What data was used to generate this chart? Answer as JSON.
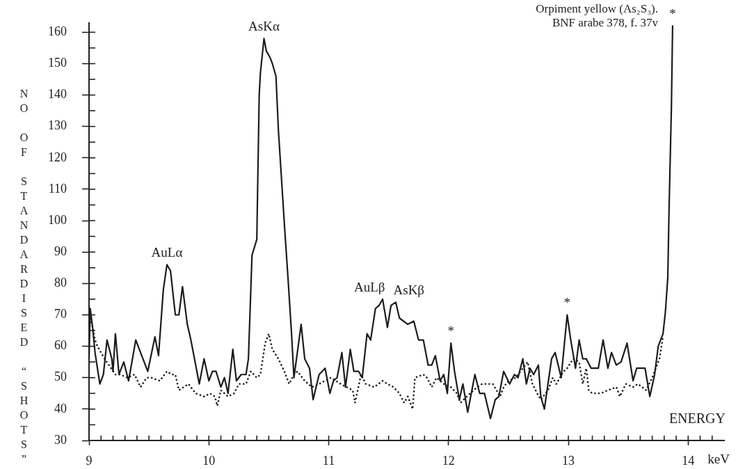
{
  "chart_data": {
    "type": "line",
    "title": "Orpiment yellow (As₂S₃).",
    "subtitle": "BNF arabe 378, f. 37v",
    "xlabel": "ENERGY",
    "ylabel": "NO OF STANDARDISED “SHOTS”",
    "xlim": [
      9,
      14.3
    ],
    "ylim": [
      30,
      163
    ],
    "xticks": [
      9,
      {
        "value": 9.1,
        "label": null
      },
      {
        "value": 9.2,
        "label": null
      },
      {
        "value": 9.3,
        "label": null
      },
      {
        "value": 9.4,
        "label": null
      },
      {
        "value": 9.5,
        "label": null
      },
      {
        "value": 9.6,
        "label": null
      },
      {
        "value": 9.7,
        "label": null
      },
      {
        "value": 9.8,
        "label": null
      },
      {
        "value": 9.9,
        "label": null
      },
      10,
      {
        "value": 10.1,
        "label": null
      },
      {
        "value": 10.2,
        "label": null
      },
      {
        "value": 10.3,
        "label": null
      },
      {
        "value": 10.4,
        "label": null
      },
      {
        "value": 10.5,
        "label": null
      },
      {
        "value": 10.6,
        "label": null
      },
      {
        "value": 10.7,
        "label": null
      },
      {
        "value": 10.8,
        "label": null
      },
      {
        "value": 10.9,
        "label": null
      },
      11,
      {
        "value": 11.1,
        "label": null
      },
      {
        "value": 11.2,
        "label": null
      },
      {
        "value": 11.3,
        "label": null
      },
      {
        "value": 11.4,
        "label": null
      },
      {
        "value": 11.5,
        "label": null
      },
      {
        "value": 11.6,
        "label": null
      },
      {
        "value": 11.7,
        "label": null
      },
      {
        "value": 11.8,
        "label": null
      },
      {
        "value": 11.9,
        "label": null
      },
      12,
      {
        "value": 12.1,
        "label": null
      },
      {
        "value": 12.2,
        "label": null
      },
      {
        "value": 12.3,
        "label": null
      },
      {
        "value": 12.4,
        "label": null
      },
      {
        "value": 12.5,
        "label": null
      },
      {
        "value": 12.6,
        "label": null
      },
      {
        "value": 12.7,
        "label": null
      },
      {
        "value": 12.8,
        "label": null
      },
      {
        "value": 12.9,
        "label": null
      },
      13,
      {
        "value": 13.1,
        "label": null
      },
      {
        "value": 13.2,
        "label": null
      },
      {
        "value": 13.3,
        "label": null
      },
      {
        "value": 13.4,
        "label": null
      },
      {
        "value": 13.5,
        "label": null
      },
      {
        "value": 13.6,
        "label": null
      },
      {
        "value": 13.7,
        "label": null
      },
      {
        "value": 13.8,
        "label": null
      },
      {
        "value": 13.9,
        "label": null
      },
      14,
      {
        "value": 14.1,
        "label": null
      },
      {
        "value": 14.2,
        "label": null
      }
    ],
    "yticks": [
      30,
      {
        "value": 35,
        "label": null
      },
      40,
      {
        "value": 45,
        "label": null
      },
      50,
      {
        "value": 55,
        "label": null
      },
      60,
      {
        "value": 65,
        "label": null
      },
      70,
      {
        "value": 75,
        "label": null
      },
      80,
      {
        "value": 85,
        "label": null
      },
      90,
      {
        "value": 95,
        "label": null
      },
      100,
      {
        "value": 105,
        "label": null
      },
      110,
      {
        "value": 115,
        "label": null
      },
      120,
      {
        "value": 125,
        "label": null
      },
      130,
      {
        "value": 135,
        "label": null
      },
      140,
      {
        "value": 145,
        "label": null
      },
      150,
      {
        "value": 155,
        "label": null
      },
      160
    ],
    "series": [
      {
        "color": "#1c1c1c",
        "line_style": "solid",
        "x": [
          9.0,
          9.01,
          9.03,
          9.05,
          9.09,
          9.12,
          9.15,
          9.19,
          9.2,
          9.22,
          9.25,
          9.29,
          9.33,
          9.39,
          9.49,
          9.55,
          9.58,
          9.62,
          9.65,
          9.68,
          9.72,
          9.75,
          9.78,
          9.82,
          9.85,
          9.92,
          9.96,
          10.0,
          10.03,
          10.06,
          10.1,
          10.13,
          10.16,
          10.2,
          10.23,
          10.27,
          10.31,
          10.33,
          10.36,
          10.4,
          10.42,
          10.43,
          10.46,
          10.48,
          10.51,
          10.53,
          10.56,
          10.58,
          10.61,
          10.63,
          10.66,
          10.69,
          10.71,
          10.77,
          10.8,
          10.84,
          10.87,
          10.92,
          10.97,
          11.01,
          11.04,
          11.07,
          11.11,
          11.14,
          11.18,
          11.21,
          11.25,
          11.28,
          11.32,
          11.35,
          11.39,
          11.42,
          11.45,
          11.49,
          11.52,
          11.56,
          11.59,
          11.66,
          11.71,
          11.75,
          11.79,
          11.83,
          11.86,
          11.89,
          11.93,
          11.96,
          11.99,
          12.02,
          12.05,
          12.09,
          12.12,
          12.16,
          12.22,
          12.26,
          12.3,
          12.35,
          12.39,
          12.42,
          12.46,
          12.51,
          12.55,
          12.58,
          12.62,
          12.65,
          12.68,
          12.71,
          12.75,
          12.77,
          12.8,
          12.83,
          12.86,
          12.89,
          12.94,
          12.99,
          13.02,
          13.06,
          13.09,
          13.12,
          13.15,
          13.19,
          13.25,
          13.29,
          13.33,
          13.36,
          13.4,
          13.44,
          13.49,
          13.54,
          13.57,
          13.64,
          13.68,
          13.72,
          13.75,
          13.79,
          13.81,
          13.83,
          13.84,
          13.86,
          13.87
        ],
        "values": [
          56,
          72,
          66,
          58,
          48,
          51,
          62,
          56,
          52,
          64,
          51,
          55,
          49,
          62,
          52,
          63,
          57,
          78,
          86,
          84,
          70,
          70,
          79,
          67,
          62,
          48,
          56,
          49,
          52,
          52,
          47,
          50,
          45,
          59,
          49,
          51,
          51,
          56,
          89,
          94,
          140,
          147,
          158,
          154,
          152,
          150,
          146,
          129,
          111,
          99,
          82,
          64,
          50,
          67,
          56,
          53,
          43,
          51,
          53,
          45,
          49,
          50,
          58,
          47,
          59,
          52,
          52,
          50,
          64,
          62,
          72,
          73,
          75,
          66,
          73,
          74,
          69,
          67,
          68,
          62,
          62,
          54,
          54,
          57,
          49,
          51,
          45,
          61,
          52,
          43,
          48,
          39,
          51,
          45,
          45,
          37,
          43,
          44,
          52,
          48,
          51,
          50,
          56,
          48,
          53,
          51,
          54,
          44,
          40,
          48,
          56,
          58,
          50,
          70,
          62,
          53,
          62,
          56,
          56,
          53,
          53,
          62,
          53,
          58,
          54,
          55,
          61,
          49,
          53,
          53,
          44,
          51,
          60,
          64,
          71,
          82,
          103,
          136,
          162
        ]
      },
      {
        "color": "#1c1c1c",
        "line_style": "dotted",
        "x": [
          9.0,
          9.03,
          9.05,
          9.07,
          9.13,
          9.22,
          9.26,
          9.32,
          9.38,
          9.43,
          9.48,
          9.52,
          9.59,
          9.65,
          9.69,
          9.72,
          9.75,
          9.79,
          9.83,
          9.89,
          9.96,
          10.01,
          10.05,
          10.07,
          10.1,
          10.16,
          10.21,
          10.25,
          10.31,
          10.35,
          10.4,
          10.43,
          10.47,
          10.5,
          10.53,
          10.58,
          10.63,
          10.67,
          10.71,
          10.74,
          10.8,
          10.86,
          10.92,
          10.97,
          11.02,
          11.1,
          11.15,
          11.2,
          11.22,
          11.27,
          11.31,
          11.38,
          11.45,
          11.49,
          11.54,
          11.59,
          11.63,
          11.66,
          11.7,
          11.72,
          11.79,
          11.82,
          11.86,
          11.9,
          11.96,
          12.02,
          12.07,
          12.1,
          12.18,
          12.24,
          12.28,
          12.37,
          12.43,
          12.46,
          12.5,
          12.56,
          12.66,
          12.7,
          12.74,
          12.77,
          12.83,
          12.87,
          12.9,
          12.96,
          12.99,
          13.04,
          13.09,
          13.12,
          13.15,
          13.17,
          13.2,
          13.27,
          13.33,
          13.4,
          13.43,
          13.48,
          13.54,
          13.58,
          13.65,
          13.7,
          13.76,
          13.79
        ],
        "values": [
          70,
          66,
          62,
          60,
          56,
          51,
          51,
          50,
          51,
          47,
          50,
          50,
          49,
          52,
          51,
          51,
          46,
          47,
          48,
          45,
          44,
          45,
          44,
          41,
          46,
          44,
          45,
          48,
          48,
          52,
          50,
          51,
          61,
          64,
          59,
          56,
          52,
          48,
          51,
          52,
          49,
          47,
          48,
          49,
          50,
          48,
          47,
          46,
          42,
          51,
          48,
          47,
          49,
          48,
          47,
          45,
          42,
          44,
          40,
          50,
          51,
          50,
          47,
          50,
          48,
          47,
          45,
          42,
          45,
          47,
          48,
          48,
          44,
          47,
          49,
          50,
          55,
          48,
          45,
          43,
          46,
          50,
          48,
          52,
          53,
          56,
          55,
          48,
          53,
          46,
          45,
          45,
          46,
          47,
          44,
          48,
          47,
          48,
          46,
          50,
          56,
          63
        ]
      }
    ],
    "annotations": [
      {
        "text": "AuLα",
        "x": 9.65,
        "y": 86
      },
      {
        "text": "AsKα",
        "x": 10.46,
        "y": 158
      },
      {
        "text": "AuLβ",
        "x": 11.45,
        "y": 75
      },
      {
        "text": "AsKβ",
        "x": 11.56,
        "y": 74
      },
      {
        "text": "*",
        "x": 12.02,
        "y": 61
      },
      {
        "text": "*",
        "x": 12.99,
        "y": 70
      },
      {
        "text": "*",
        "x": 13.87,
        "y": 162
      },
      "keV"
    ]
  }
}
